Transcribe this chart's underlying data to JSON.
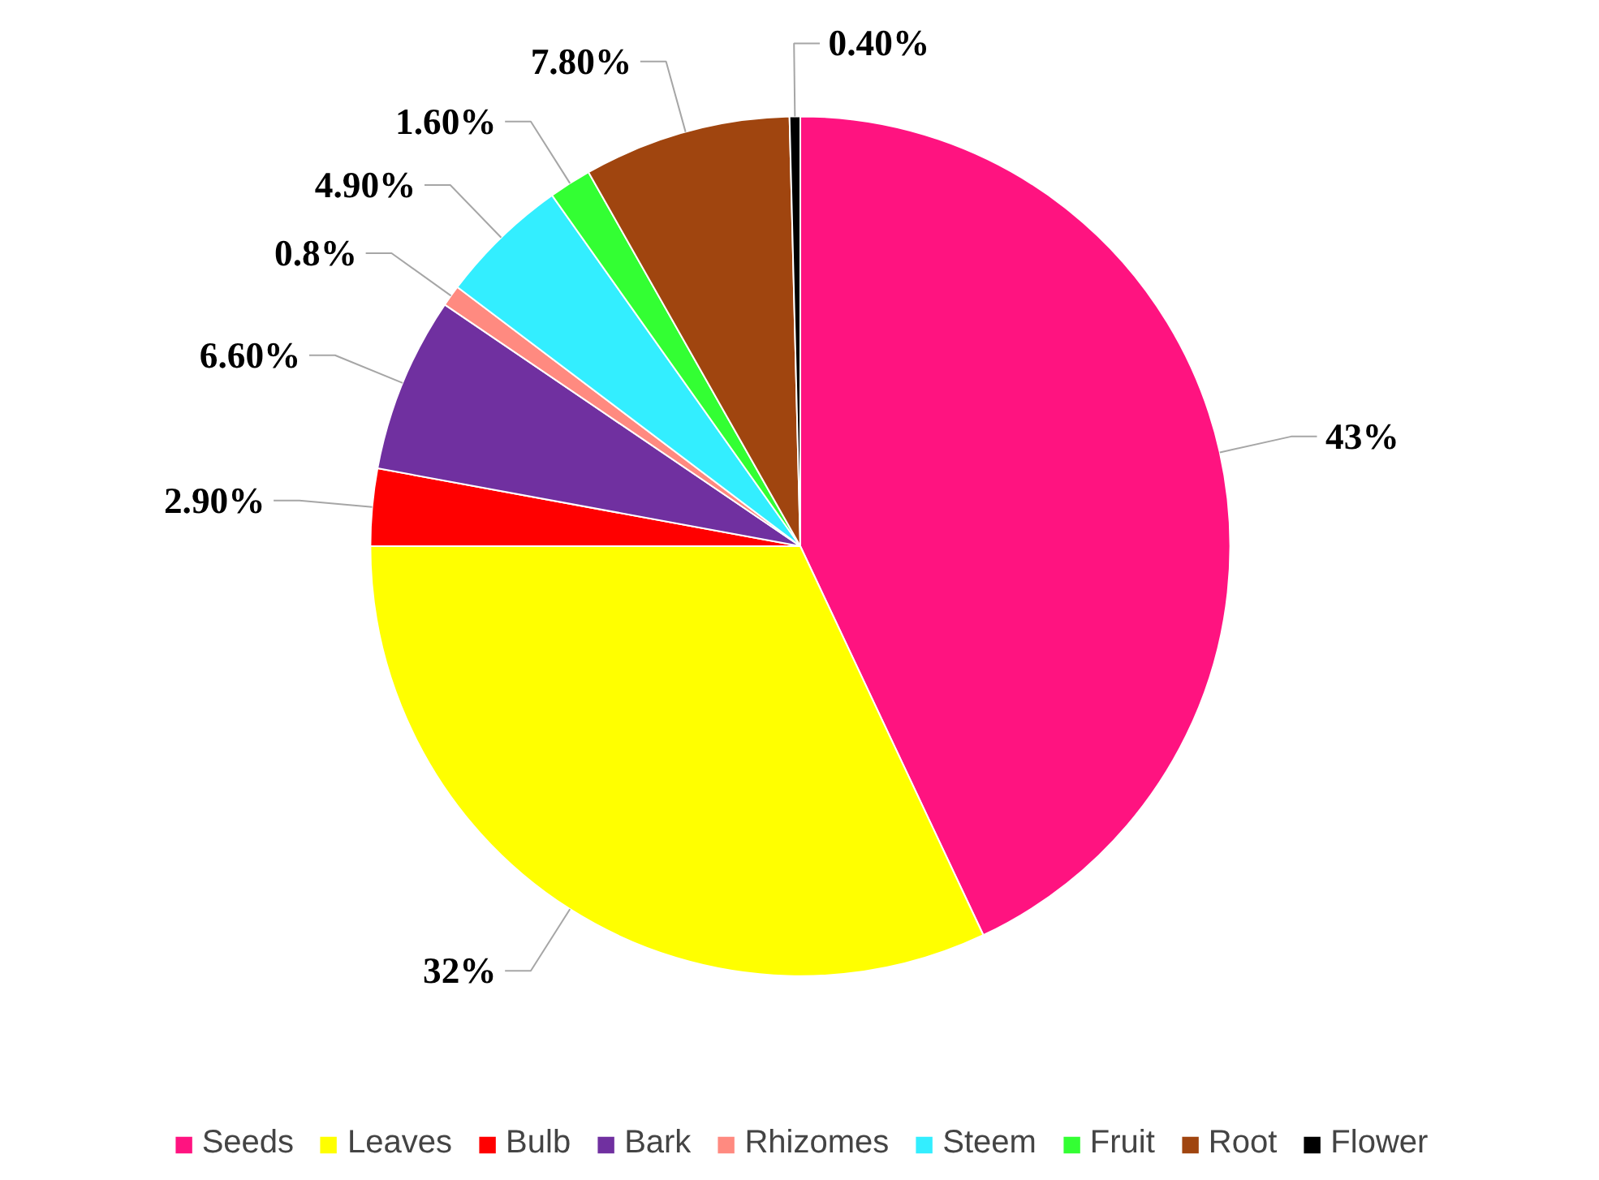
{
  "chart_data": {
    "type": "pie",
    "categories": [
      "Seeds",
      "Leaves",
      "Bulb",
      "Bark",
      "Rhizomes",
      "Steem",
      "Fruit",
      "Root",
      "Flower"
    ],
    "values": [
      43,
      32,
      2.9,
      6.6,
      0.8,
      4.9,
      1.6,
      7.8,
      0.4
    ],
    "colors": [
      "#ff1380",
      "#ffff00",
      "#ff0000",
      "#7030a0",
      "#ff8a80",
      "#33eeff",
      "#33ff33",
      "#a0450f",
      "#000000"
    ],
    "value_labels": [
      "43%",
      "32%",
      "2.90%",
      "6.60%",
      "0.8%",
      "4.90%",
      "1.60%",
      "7.80%",
      "0.40%"
    ],
    "legend": "bottom"
  }
}
